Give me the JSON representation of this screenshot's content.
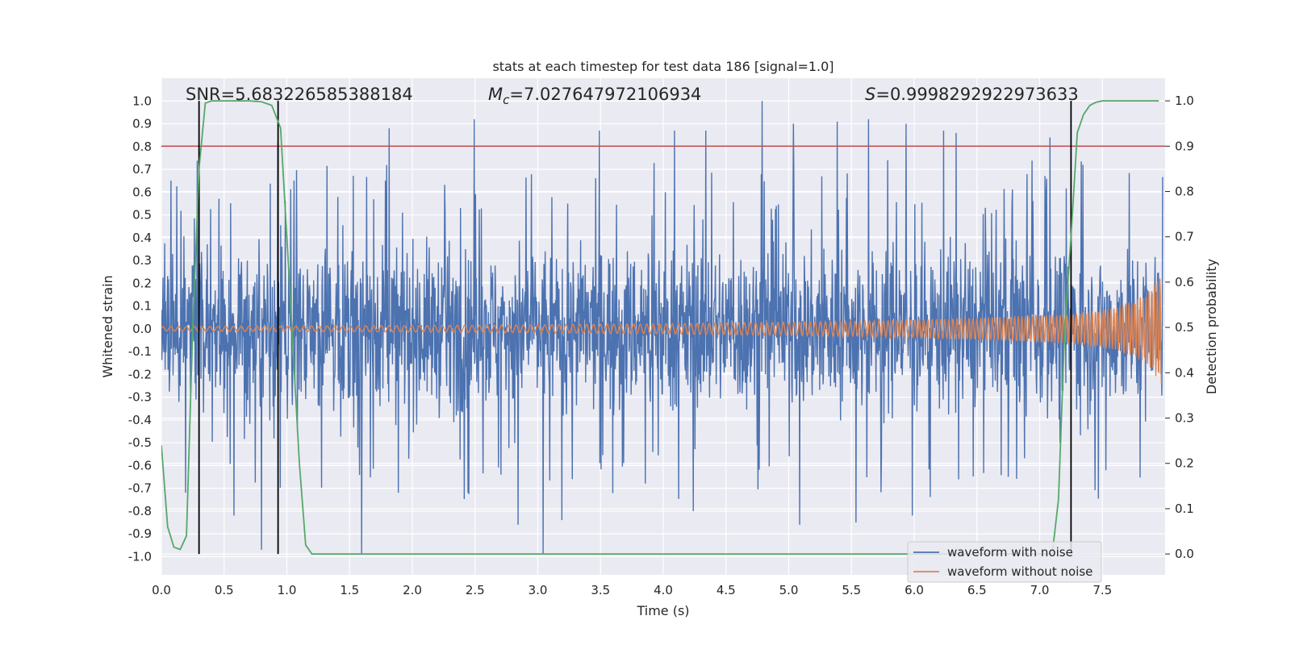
{
  "chart_data": {
    "type": "line",
    "title": "stats at each timestep for test data 186 [signal=1.0]",
    "xlabel": "Time (s)",
    "ylabel_left": "Whitened strain",
    "ylabel_right": "Detection probability",
    "xlim": [
      0.0,
      8.0
    ],
    "ylim_left": [
      -1.08,
      1.1
    ],
    "ylim_right": [
      -0.046,
      1.05
    ],
    "x_ticks": [
      "0.0",
      "0.5",
      "1.0",
      "1.5",
      "2.0",
      "2.5",
      "3.0",
      "3.5",
      "4.0",
      "4.5",
      "5.0",
      "5.5",
      "6.0",
      "6.5",
      "7.0",
      "7.5"
    ],
    "y_ticks_left": [
      "1.0",
      "0.9",
      "0.8",
      "0.7",
      "0.6",
      "0.5",
      "0.4",
      "0.3",
      "0.2",
      "0.1",
      "0.0",
      "-0.1",
      "-0.2",
      "-0.3",
      "-0.4",
      "-0.5",
      "-0.6",
      "-0.7",
      "-0.8",
      "-0.9",
      "-1.0"
    ],
    "y_ticks_right": [
      "1.0",
      "0.9",
      "0.8",
      "0.7",
      "0.6",
      "0.5",
      "0.4",
      "0.3",
      "0.2",
      "0.1",
      "0.0"
    ],
    "grid": true,
    "legend_position": "bottom-right",
    "threshold": {
      "value": 0.9,
      "axis": "right",
      "color": "#c44e52"
    },
    "vertical_markers": [
      0.3,
      0.93,
      7.25
    ],
    "annotations": {
      "snr_label": "SNR=5.683226585388184",
      "mc_symbol": "M",
      "mc_subscript": "c",
      "mc_value": "=7.027647972106934",
      "s_symbol": "S",
      "s_value": "=0.9998292922973633"
    },
    "series": [
      {
        "name": "waveform with noise",
        "color": "#4c72b0",
        "axis": "left",
        "description": "noisy whitened strain, mostly within ±0.5 with spikes to about ±1.0",
        "core_amplitude": 0.45,
        "spikes": [
          [
            0.3,
            0.7
          ],
          [
            0.93,
            0.82
          ],
          [
            1.6,
            -0.99
          ],
          [
            1.82,
            0.88
          ],
          [
            2.5,
            0.92
          ],
          [
            3.05,
            -0.99
          ],
          [
            3.5,
            0.87
          ],
          [
            4.1,
            0.87
          ],
          [
            4.35,
            0.87
          ],
          [
            4.8,
            1.0
          ],
          [
            5.05,
            0.9
          ],
          [
            5.4,
            0.91
          ],
          [
            5.65,
            0.92
          ],
          [
            5.95,
            0.9
          ],
          [
            6.25,
            0.87
          ],
          [
            6.35,
            0.86
          ],
          [
            7.1,
            0.84
          ],
          [
            0.58,
            -0.82
          ],
          [
            0.8,
            -0.97
          ],
          [
            2.85,
            -0.86
          ],
          [
            3.2,
            -0.84
          ],
          [
            4.25,
            -0.8
          ],
          [
            5.1,
            -0.86
          ],
          [
            5.55,
            -0.85
          ],
          [
            6.0,
            -0.82
          ]
        ]
      },
      {
        "name": "waveform without noise",
        "color": "#dd8452",
        "axis": "left",
        "description": "inspiral chirp, amplitude growing from about 0.01 to about 0.24 near t=8 s",
        "envelope": [
          [
            0.0,
            0.01
          ],
          [
            2.0,
            0.014
          ],
          [
            4.0,
            0.022
          ],
          [
            5.5,
            0.033
          ],
          [
            6.5,
            0.047
          ],
          [
            7.25,
            0.065
          ],
          [
            7.6,
            0.09
          ],
          [
            7.85,
            0.15
          ],
          [
            7.97,
            0.24
          ]
        ]
      },
      {
        "name": "detection probability",
        "color": "#55a868",
        "axis": "right",
        "x": [
          0.0,
          0.05,
          0.1,
          0.15,
          0.2,
          0.25,
          0.3,
          0.35,
          0.4,
          0.5,
          0.6,
          0.7,
          0.8,
          0.88,
          0.95,
          1.0,
          1.05,
          1.1,
          1.15,
          1.2,
          1.5,
          2.0,
          3.0,
          4.0,
          5.0,
          6.0,
          6.8,
          7.1,
          7.15,
          7.2,
          7.25,
          7.3,
          7.35,
          7.4,
          7.45,
          7.5,
          7.6,
          7.8,
          7.95
        ],
        "values": [
          0.24,
          0.06,
          0.015,
          0.01,
          0.04,
          0.5,
          0.85,
          0.995,
          1.0,
          1.0,
          1.0,
          1.0,
          0.998,
          0.99,
          0.94,
          0.7,
          0.45,
          0.2,
          0.02,
          0.0,
          0.0,
          0.0,
          0.0,
          0.0,
          0.0,
          0.0,
          0.0,
          0.0,
          0.12,
          0.5,
          0.7,
          0.93,
          0.97,
          0.99,
          0.997,
          1.0,
          1.0,
          1.0,
          1.0
        ]
      }
    ]
  }
}
